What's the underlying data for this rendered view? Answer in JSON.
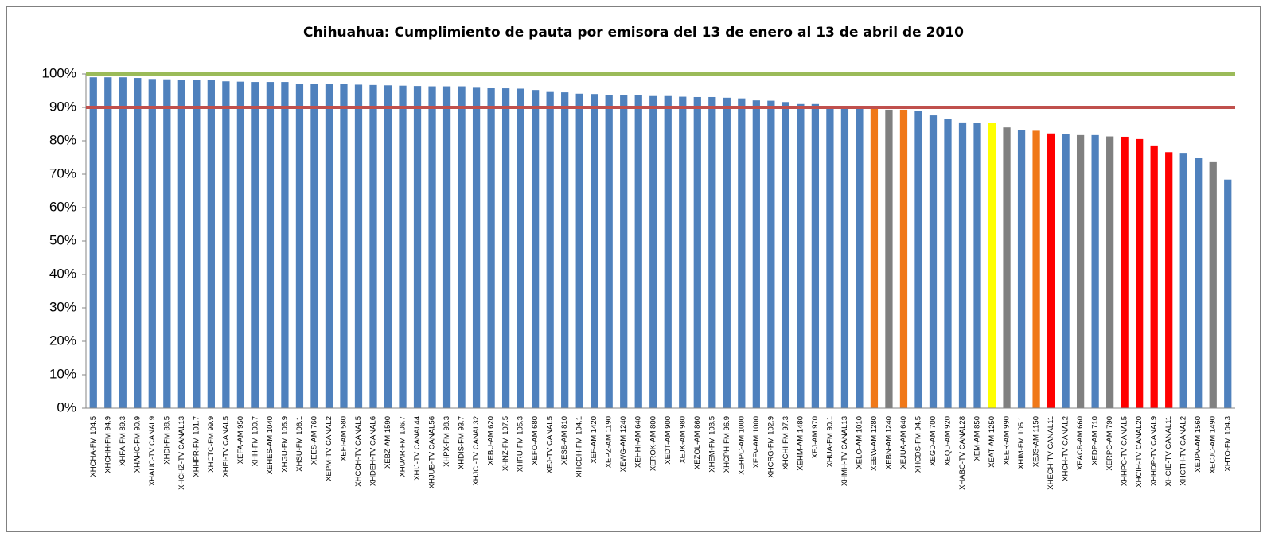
{
  "chart_data": {
    "type": "bar",
    "title": "Chihuahua: Cumplimiento de pauta por emisora del 13 de enero al 13 de abril de 2010",
    "categories": [
      "XHCHA-FM 104.5",
      "XHCHH-FM 94.9",
      "XHFA-FM 89.3",
      "XHAHC-FM 90.9",
      "XHAUC-TV CANAL9",
      "XHDI-FM 88.5",
      "XHCHZ-TV CANAL13",
      "XHHPR-FM 101.7",
      "XHCTC-FM 99.9",
      "XHFI-TV CANAL5",
      "XEFA-AM 950",
      "XHH-FM 100.7",
      "XEHES-AM 1040",
      "XHGU-FM 105.9",
      "XHSU-FM 106.1",
      "XEES-AM 760",
      "XEPM-TV CANAL2",
      "XEFI-AM 580",
      "XHCCH-TV CANAL5",
      "XHDEH-TV CANAL6",
      "XEBZ-AM 1590",
      "XHUAR-FM 106.7",
      "XHIJ-TV CANAL44",
      "XHJUB-TV CANAL56",
      "XHPX-FM 98.3",
      "XHDIS-FM 93.7",
      "XHJCI-TV CANAL32",
      "XEBU-AM 620",
      "XHNZ-FM 107.5",
      "XHRU-FM 105.3",
      "XEFO-AM 680",
      "XEJ-TV CANAL5",
      "XESB-AM 810",
      "XHCDH-FM 104.1",
      "XEF-AM 1420",
      "XEPZ-AM 1190",
      "XEWG-AM 1240",
      "XEHHI-AM 640",
      "XEROK-AM 800",
      "XEDT-AM 900",
      "XEJK-AM 980",
      "XEZOL-AM 860",
      "XHEM-FM 103.5",
      "XHCPH-FM 96.9",
      "XEHPC-AM 1000",
      "XEFV-AM 1000",
      "XHCRG-FM 102.9",
      "XHCHI-FM 97.3",
      "XEHM-AM 1480",
      "XEJ-AM 970",
      "XHUA-FM 90.1",
      "XHMH-TV CANAL13",
      "XELO-AM 1010",
      "XEBW-AM 1280",
      "XEBN-AM 1240",
      "XEJUA-AM 640",
      "XHCDS-FM 94.5",
      "XEGD-AM 700",
      "XEQD-AM 920",
      "XHABC-TV CANAL28",
      "XEM-AM 850",
      "XEAT-AM 1250",
      "XEER-AM 990",
      "XHIM-FM 105.1",
      "XEJS-AM 1150",
      "XHECH-TV CANAL11",
      "XHCH-TV CANAL2",
      "XEACB-AM 660",
      "XEDP-AM 710",
      "XERPC-AM 790",
      "XHHPC-TV CANAL5",
      "XHCIH-TV CANAL20",
      "XHHDP-TV CANAL9",
      "XHCIE-TV CANAL11",
      "XHCTH-TV CANAL2",
      "XEJPV-AM 1560",
      "XECJC-AM 1490",
      "XHTO-FM 104.3"
    ],
    "values": [
      99,
      99,
      99,
      98.8,
      98.5,
      98.4,
      98.3,
      98.3,
      98.1,
      97.8,
      97.7,
      97.6,
      97.6,
      97.6,
      97.1,
      97.1,
      97,
      97,
      96.8,
      96.7,
      96.6,
      96.5,
      96.4,
      96.3,
      96.3,
      96.3,
      96.1,
      95.9,
      95.7,
      95.6,
      95.2,
      94.6,
      94.5,
      94.1,
      94,
      93.8,
      93.8,
      93.7,
      93.4,
      93.4,
      93.2,
      93.1,
      93.1,
      92.9,
      92.7,
      92.1,
      92,
      91.6,
      91,
      91,
      90.3,
      90,
      90,
      90,
      89.3,
      89.3,
      89,
      87.6,
      86.5,
      85.5,
      85.4,
      85.4,
      84,
      83.3,
      83,
      82.2,
      82,
      81.7,
      81.7,
      81.3,
      81.2,
      80.5,
      78.6,
      76.6,
      76.4,
      74.8,
      73.6,
      68.4
    ],
    "colors": [
      "#4f81bd",
      "#4f81bd",
      "#4f81bd",
      "#4f81bd",
      "#4f81bd",
      "#4f81bd",
      "#4f81bd",
      "#4f81bd",
      "#4f81bd",
      "#4f81bd",
      "#4f81bd",
      "#4f81bd",
      "#4f81bd",
      "#4f81bd",
      "#4f81bd",
      "#4f81bd",
      "#4f81bd",
      "#4f81bd",
      "#4f81bd",
      "#4f81bd",
      "#4f81bd",
      "#4f81bd",
      "#4f81bd",
      "#4f81bd",
      "#4f81bd",
      "#4f81bd",
      "#4f81bd",
      "#4f81bd",
      "#4f81bd",
      "#4f81bd",
      "#4f81bd",
      "#4f81bd",
      "#4f81bd",
      "#4f81bd",
      "#4f81bd",
      "#4f81bd",
      "#4f81bd",
      "#4f81bd",
      "#4f81bd",
      "#4f81bd",
      "#4f81bd",
      "#4f81bd",
      "#4f81bd",
      "#4f81bd",
      "#4f81bd",
      "#4f81bd",
      "#4f81bd",
      "#4f81bd",
      "#4f81bd",
      "#4f81bd",
      "#4f81bd",
      "#4f81bd",
      "#4f81bd",
      "#f07818",
      "#808080",
      "#f07818",
      "#4f81bd",
      "#4f81bd",
      "#4f81bd",
      "#4f81bd",
      "#4f81bd",
      "#ffff00",
      "#808080",
      "#4f81bd",
      "#f07818",
      "#ff0000",
      "#4f81bd",
      "#808080",
      "#4f81bd",
      "#808080",
      "#ff0000",
      "#ff0000",
      "#ff0000",
      "#ff0000",
      "#4f81bd",
      "#4f81bd",
      "#808080",
      "#4f81bd"
    ],
    "reference_lines": [
      {
        "value": 100,
        "color": "#9bbb59"
      },
      {
        "value": 90,
        "color": "#c0504d"
      }
    ],
    "ylim": [
      0,
      100
    ],
    "yticks": [
      {
        "value": 0,
        "label": "0%"
      },
      {
        "value": 10,
        "label": "10%"
      },
      {
        "value": 20,
        "label": "20%"
      },
      {
        "value": 30,
        "label": "30%"
      },
      {
        "value": 40,
        "label": "40%"
      },
      {
        "value": 50,
        "label": "50%"
      },
      {
        "value": 60,
        "label": "60%"
      },
      {
        "value": 70,
        "label": "70%"
      },
      {
        "value": 80,
        "label": "80%"
      },
      {
        "value": 90,
        "label": "90%"
      },
      {
        "value": 100,
        "label": "100%"
      }
    ],
    "grid": false
  }
}
